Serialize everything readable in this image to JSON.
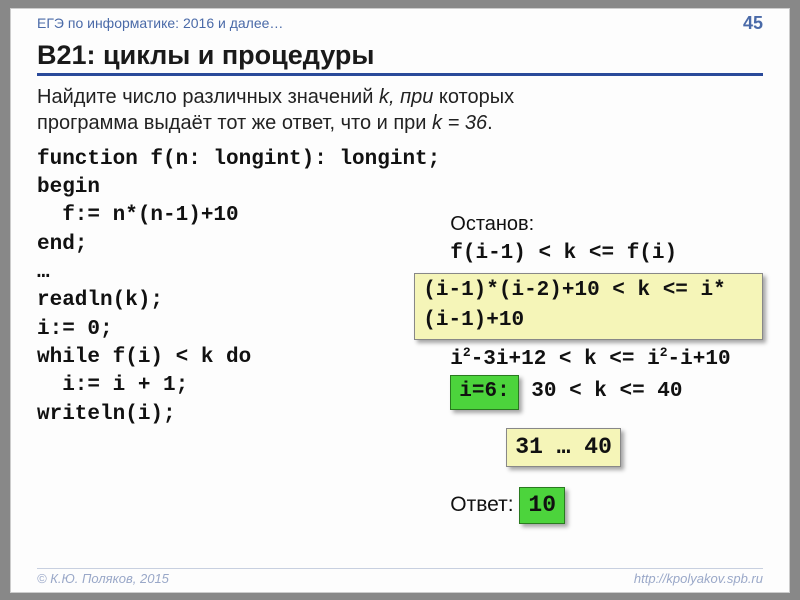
{
  "topbar": {
    "left": "ЕГЭ по информатике: 2016 и далее…",
    "page": "45"
  },
  "title": "B21: циклы и процедуры",
  "question": {
    "line1_a": "Найдите число различных значений ",
    "line1_k": "k, при",
    "line1_b": " которых",
    "line2_a": "программа выдаёт тот же ответ, что и при ",
    "line2_k": "k = 36",
    "line2_b": "."
  },
  "code": "function f(n: longint): longint;\nbegin\n  f:= n*(n-1)+10\nend;\n…\nreadln(k);\ni:= 0;\nwhile f(i) < k do\n  i:= i + 1;\nwriteln(i);",
  "right": {
    "stop_label": "Останов:",
    "cond1": "f(i-1) < k <= f(i)",
    "cond2": "(i-1)*(i-2)+10 < k <= i*(i-1)+10",
    "cond3_a": "i",
    "cond3_b": "-3i+12 < k <= i",
    "cond3_c": "-i+10",
    "i6": "i=6:",
    "i6_rest": " 30 < k <= 40",
    "range": "31 … 40",
    "answer_label": "Ответ: ",
    "answer": "10"
  },
  "footer": {
    "left": "© К.Ю. Поляков, 2015",
    "right": "http://kpolyakov.spb.ru"
  },
  "colors": {
    "rule": "#2a4a9a",
    "top_text": "#4a6aa8",
    "yellow": "#f5f5b8",
    "green": "#4cd43c",
    "footer": "#9aa8c8"
  }
}
